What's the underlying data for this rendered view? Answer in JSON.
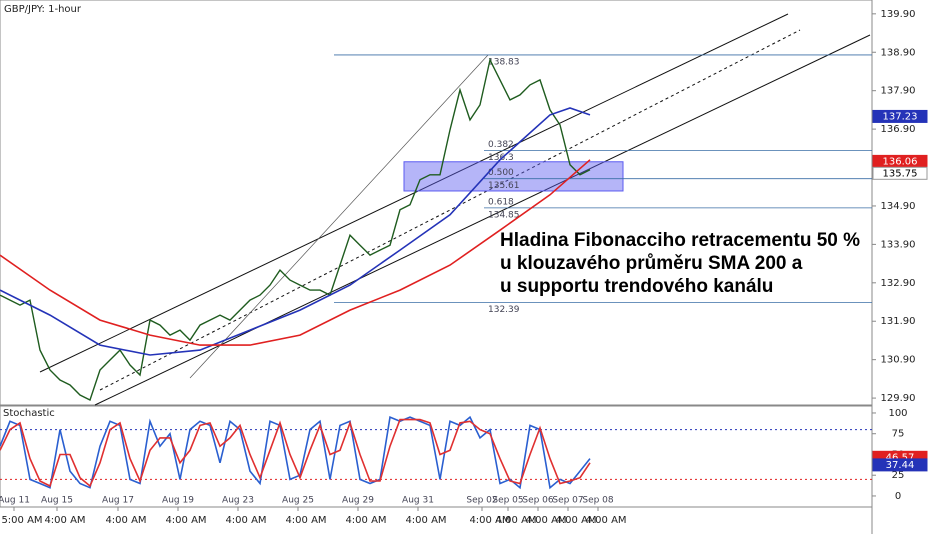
{
  "chart_data": [
    {
      "type": "line",
      "title": "GBP/JPY: 1-hour",
      "xlim": [
        0,
        87.2
      ],
      "xticks": [
        {
          "value": 1.4,
          "label": "Aug 11"
        },
        {
          "value": 5.7,
          "label": "Aug 15"
        },
        {
          "value": 11.8,
          "label": "Aug 17"
        },
        {
          "value": 17.8,
          "label": "Aug 19"
        },
        {
          "value": 23.8,
          "label": "Aug 23"
        },
        {
          "value": 29.8,
          "label": "Aug 25"
        },
        {
          "value": 35.8,
          "label": "Aug 29"
        },
        {
          "value": 41.8,
          "label": "Aug 31"
        },
        {
          "value": 48.2,
          "label": "Sep 02"
        },
        {
          "value": 50.8,
          "label": "Sep 05"
        },
        {
          "value": 53.8,
          "label": "Sep 06"
        },
        {
          "value": 56.8,
          "label": "Sep 07"
        },
        {
          "value": 59.8,
          "label": "Sep 08"
        }
      ],
      "xtick_times": [
        "5:00 AM",
        "4:00 AM",
        "4:00 AM",
        "4:00 AM",
        "4:00 AM",
        "4:00 AM",
        "4:00 AM",
        "4:00 AM",
        "4:00 AM",
        "4:00 AM",
        "4:00 AM",
        "4:00 AM",
        "4:00 AM"
      ],
      "ylim": [
        129.72,
        140.26
      ],
      "yticks": [
        {
          "value": 139.9,
          "label": "139.90"
        },
        {
          "value": 138.9,
          "label": "138.90"
        },
        {
          "value": 137.9,
          "label": "137.90"
        },
        {
          "value": 136.9,
          "label": "136.90"
        },
        {
          "value": 135.9,
          "label": "135.90"
        },
        {
          "value": 134.9,
          "label": "134.90"
        },
        {
          "value": 133.9,
          "label": "133.90"
        },
        {
          "value": 132.9,
          "label": "132.90"
        },
        {
          "value": 131.9,
          "label": "131.90"
        },
        {
          "value": 130.9,
          "label": "130.90"
        },
        {
          "value": 129.9,
          "label": "129.90"
        }
      ],
      "series": [
        {
          "color": "#1f5c1f",
          "x": [
            0,
            1,
            2,
            3,
            4,
            5,
            6,
            7,
            8,
            9,
            10,
            11,
            12,
            13,
            14,
            15,
            16,
            17,
            18,
            19,
            20,
            21,
            22,
            23,
            24,
            25,
            26,
            27,
            28,
            29,
            30,
            31,
            32,
            33,
            34,
            35,
            36,
            37,
            38,
            39,
            40,
            41,
            42,
            43,
            44,
            45,
            46,
            47,
            48,
            49,
            50,
            51,
            52,
            53,
            54,
            55,
            56,
            57,
            58,
            59
          ],
          "values": [
            132.58,
            132.45,
            132.32,
            132.45,
            131.15,
            130.63,
            130.37,
            130.24,
            129.98,
            129.85,
            130.63,
            130.89,
            131.15,
            130.76,
            130.5,
            131.93,
            131.8,
            131.54,
            131.67,
            131.41,
            131.8,
            131.93,
            132.06,
            131.93,
            132.19,
            132.45,
            132.58,
            132.84,
            133.23,
            132.97,
            132.84,
            132.71,
            132.71,
            132.58,
            133.36,
            134.14,
            133.88,
            133.62,
            133.75,
            133.88,
            134.8,
            134.93,
            135.58,
            135.71,
            135.71,
            136.88,
            137.92,
            137.14,
            137.53,
            138.7,
            138.18,
            137.66,
            137.79,
            138.05,
            138.18,
            137.4,
            137.01,
            135.97,
            135.71,
            135.84
          ]
        },
        {
          "color": "#2433b8",
          "x": [
            0,
            5,
            10,
            15,
            20,
            25,
            30,
            35,
            40,
            45,
            50,
            55,
            57,
            59
          ],
          "values": [
            132.71,
            132.06,
            131.28,
            131.02,
            131.15,
            131.67,
            132.19,
            132.84,
            133.75,
            134.67,
            136.1,
            137.27,
            137.45,
            137.27
          ]
        },
        {
          "color": "#e02020",
          "x": [
            0,
            5,
            10,
            15,
            20,
            25,
            30,
            35,
            40,
            45,
            50,
            55,
            59
          ],
          "values": [
            133.62,
            132.71,
            131.93,
            131.54,
            131.28,
            131.28,
            131.54,
            132.19,
            132.71,
            133.36,
            134.27,
            135.19,
            136.1
          ]
        }
      ],
      "fib": {
        "values": [
          138.83,
          136.34,
          135.61,
          134.85,
          132.39
        ],
        "value_labels": [
          "138.83",
          "136.3",
          "135.61",
          "134.85",
          "132.39"
        ],
        "ratios": [
          null,
          "0.382",
          "0.500",
          "0.618",
          null
        ],
        "color": "#3a6ea5"
      },
      "zone": [
        135.29,
        136.05
      ],
      "badges": [
        {
          "value": 137.23,
          "label": "137.23",
          "color": "#2433b8"
        },
        {
          "value": 136.06,
          "label": "136.06",
          "color": "#e02020"
        },
        {
          "value": 135.75,
          "label": "135.75",
          "color": "#ffffff"
        }
      ],
      "annotation": [
        "Hladina Fibonacciho retracementu 50 %",
        "u klouzavého průměru SMA 200 a",
        "u supportu trendového kanálu"
      ]
    },
    {
      "type": "line",
      "title": "Stochastic",
      "xlim": [
        0,
        87.2
      ],
      "ylim": [
        -13.3,
        108.4
      ],
      "yticks": [
        100,
        75,
        50,
        25,
        0
      ],
      "levels": [
        {
          "value": 80,
          "color": "#2433b8"
        },
        {
          "value": 20,
          "color": "#e02020"
        }
      ],
      "series": [
        {
          "color": "#2a5fd0",
          "x": [
            0,
            1,
            2,
            3,
            4,
            5,
            6,
            7,
            8,
            9,
            10,
            11,
            12,
            13,
            14,
            15,
            16,
            17,
            18,
            19,
            20,
            21,
            22,
            23,
            24,
            25,
            26,
            27,
            28,
            29,
            30,
            31,
            32,
            33,
            34,
            35,
            36,
            37,
            38,
            39,
            40,
            41,
            42,
            43,
            44,
            45,
            46,
            47,
            48,
            49,
            50,
            51,
            52,
            53,
            54,
            55,
            56,
            57,
            58,
            59
          ],
          "values": [
            60,
            90,
            85,
            20,
            15,
            10,
            80,
            30,
            15,
            10,
            60,
            90,
            85,
            20,
            15,
            90,
            60,
            75,
            20,
            80,
            90,
            85,
            40,
            90,
            80,
            30,
            15,
            90,
            85,
            20,
            25,
            80,
            90,
            20,
            85,
            90,
            20,
            15,
            20,
            95,
            90,
            95,
            90,
            85,
            20,
            90,
            85,
            95,
            70,
            80,
            15,
            20,
            10,
            85,
            80,
            10,
            20,
            15,
            30,
            45
          ]
        },
        {
          "color": "#e03030",
          "x": [
            0,
            1,
            2,
            3,
            4,
            5,
            6,
            7,
            8,
            9,
            10,
            11,
            12,
            13,
            14,
            15,
            16,
            17,
            18,
            19,
            20,
            21,
            22,
            23,
            24,
            25,
            26,
            27,
            28,
            29,
            30,
            31,
            32,
            33,
            34,
            35,
            36,
            37,
            38,
            39,
            40,
            41,
            42,
            43,
            44,
            45,
            46,
            47,
            48,
            49,
            50,
            51,
            52,
            53,
            54,
            55,
            56,
            57,
            58,
            59
          ],
          "values": [
            55,
            80,
            88,
            45,
            18,
            12,
            50,
            50,
            22,
            12,
            40,
            80,
            88,
            45,
            18,
            55,
            70,
            70,
            40,
            55,
            85,
            88,
            60,
            70,
            85,
            50,
            22,
            55,
            88,
            50,
            22,
            55,
            85,
            50,
            55,
            88,
            50,
            18,
            18,
            60,
            92,
            92,
            92,
            88,
            50,
            55,
            88,
            90,
            80,
            75,
            45,
            18,
            15,
            50,
            82,
            45,
            15,
            18,
            22,
            40
          ]
        }
      ],
      "badges": [
        {
          "value": 46.57,
          "color": "#e02020"
        },
        {
          "value": 37.44,
          "color": "#2433b8"
        }
      ]
    }
  ]
}
